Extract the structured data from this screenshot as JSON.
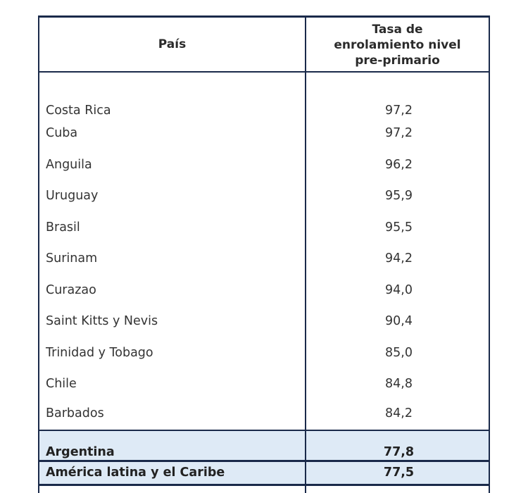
{
  "table": {
    "headers": {
      "country": "País",
      "rate": "Tasa de enrolamiento nivel pre-primario",
      "rate_lines": [
        "Tasa de",
        "enrolamiento nivel",
        "pre-primario"
      ]
    },
    "rows": [
      {
        "country": "Costa Rica",
        "value": "97,2"
      },
      {
        "country": "Cuba",
        "value": "97,2"
      },
      {
        "country": "Anguila",
        "value": "96,2"
      },
      {
        "country": "Uruguay",
        "value": "95,9"
      },
      {
        "country": "Brasil",
        "value": "95,5"
      },
      {
        "country": "Surinam",
        "value": "94,2"
      },
      {
        "country": "Curazao",
        "value": "94,0"
      },
      {
        "country": "Saint Kitts y Nevis",
        "value": "90,4"
      },
      {
        "country": "Trinidad y Tobago",
        "value": "85,0"
      },
      {
        "country": "Chile",
        "value": "84,8"
      },
      {
        "country": "Barbados",
        "value": "84,2"
      }
    ],
    "highlighted_rows": [
      {
        "country": "Argentina",
        "value": "77,8"
      },
      {
        "country": "América latina y el Caribe",
        "value": "77,5"
      }
    ]
  },
  "colors": {
    "border": "#1a2a4a",
    "highlight_bg": "#deeaf6",
    "text": "#333333"
  }
}
